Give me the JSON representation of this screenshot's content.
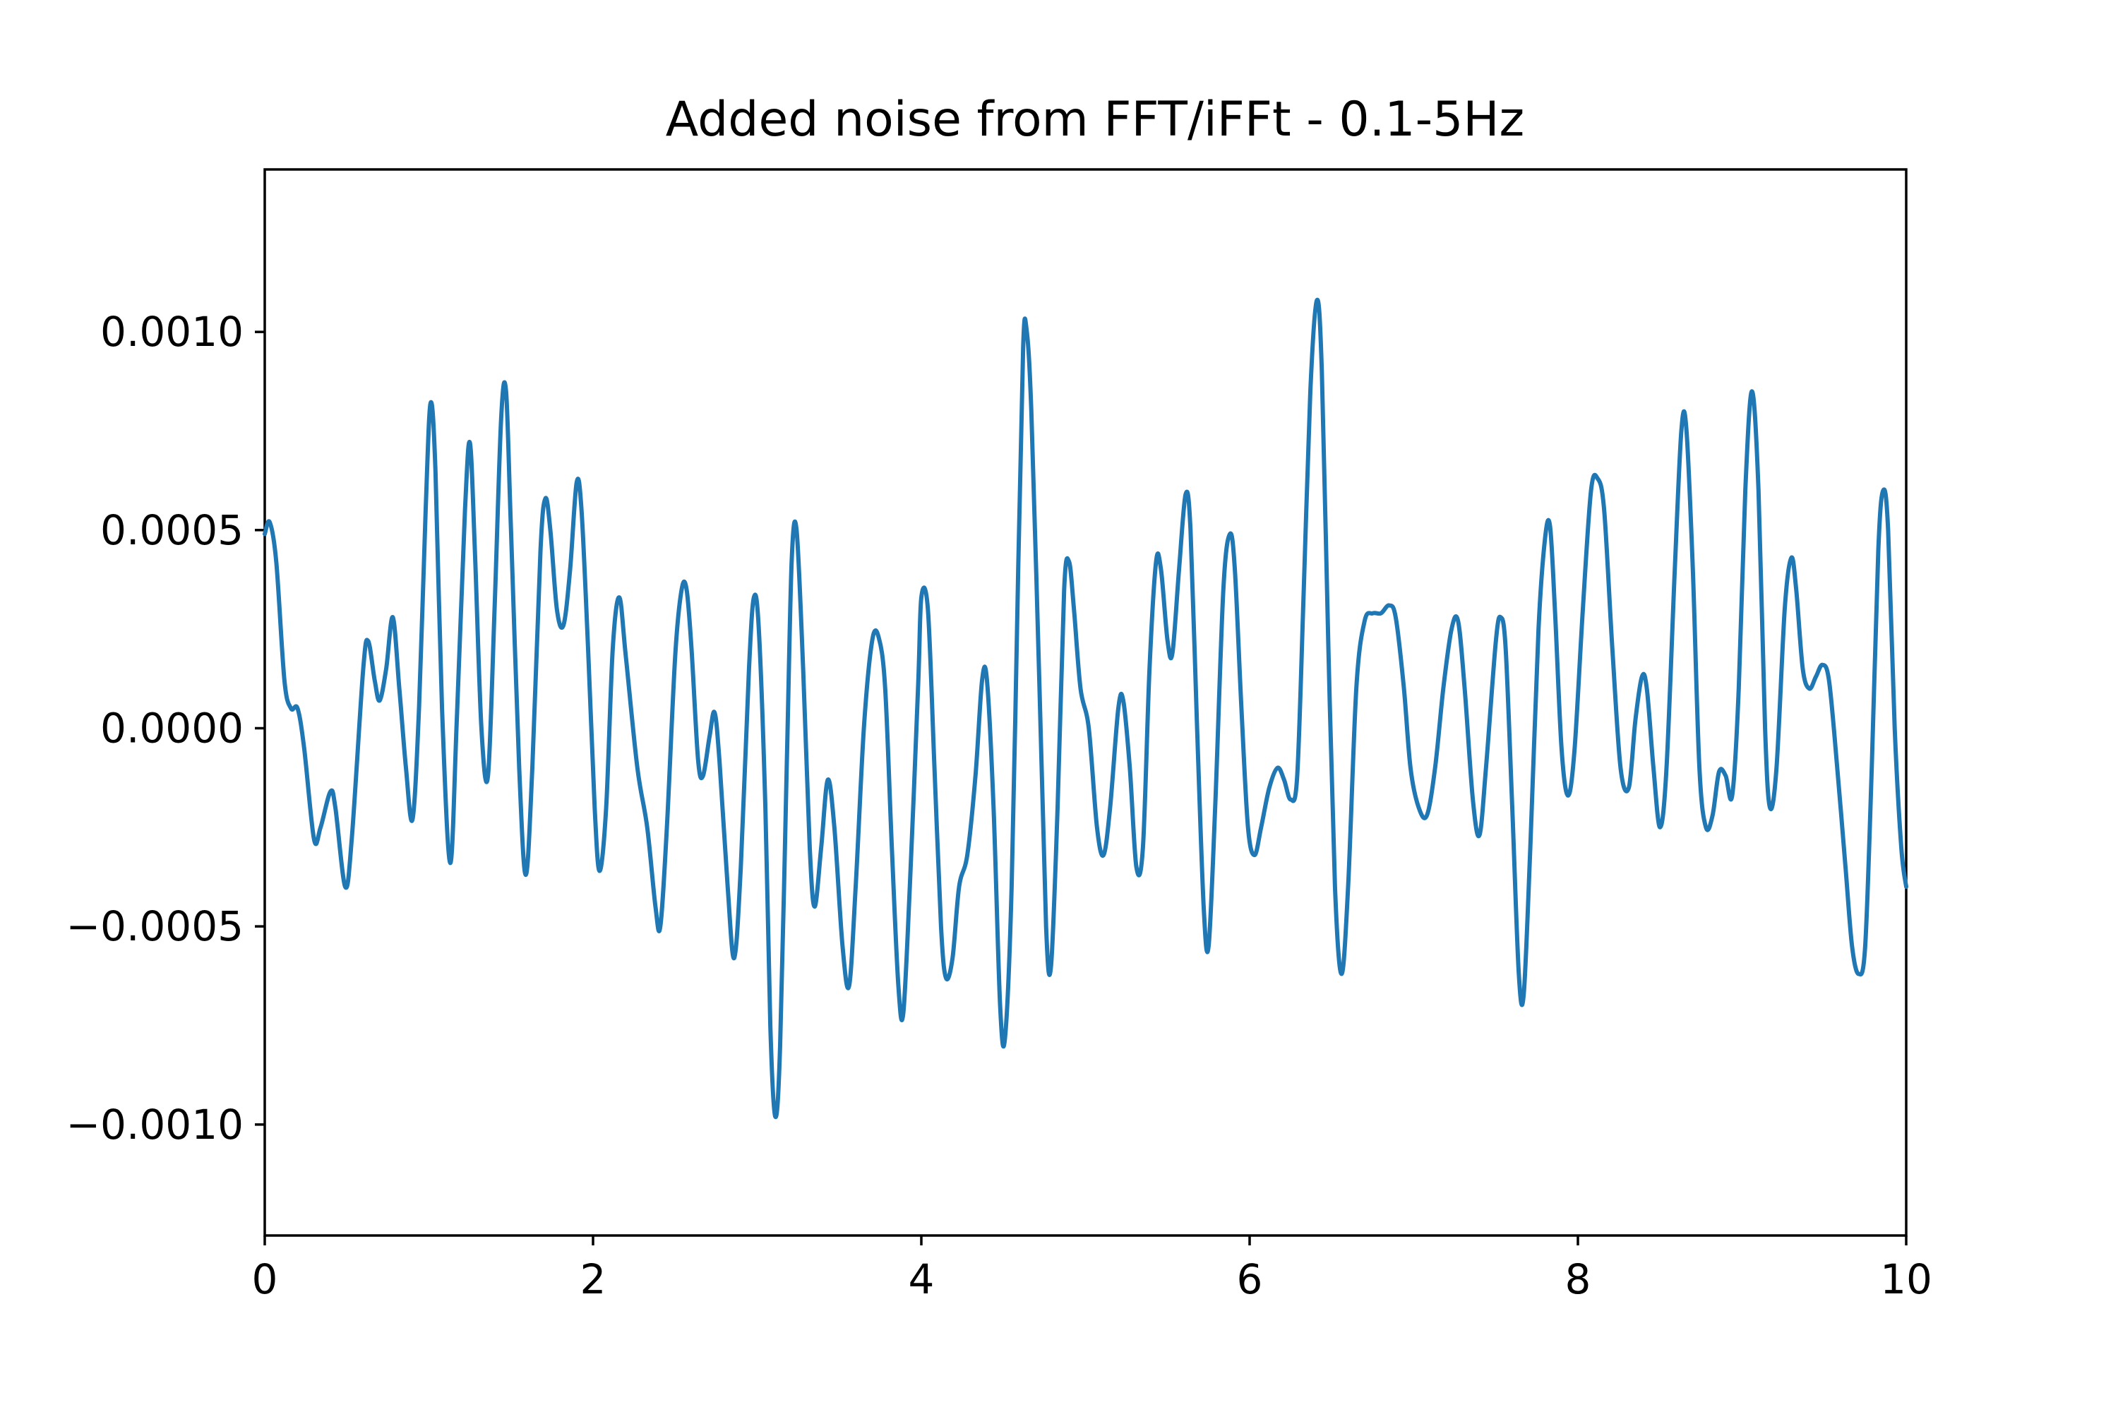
{
  "chart_data": {
    "type": "line",
    "title": "Added noise from FFT/iFFt - 0.1-5Hz",
    "xlabel": "",
    "ylabel": "",
    "xlim": [
      0,
      10
    ],
    "ylim": [
      -0.00128,
      0.00141
    ],
    "grid": false,
    "x_ticks": [
      0,
      2,
      4,
      6,
      8,
      10
    ],
    "x_tick_labels": [
      "0",
      "2",
      "4",
      "6",
      "8",
      "10"
    ],
    "y_ticks": [
      -0.001,
      -0.0005,
      0.0,
      0.0005,
      0.001
    ],
    "y_tick_labels": [
      "−0.0010",
      "−0.0005",
      "0.0000",
      "0.0005",
      "0.0010"
    ],
    "series": [
      {
        "color": "#1f77b4",
        "points": [
          [
            0.0,
            0.00049
          ],
          [
            0.03,
            0.00052
          ],
          [
            0.07,
            0.00042
          ],
          [
            0.12,
            0.00012
          ],
          [
            0.16,
            5e-05
          ],
          [
            0.2,
            5e-05
          ],
          [
            0.24,
            -5e-05
          ],
          [
            0.3,
            -0.00028
          ],
          [
            0.34,
            -0.00025
          ],
          [
            0.4,
            -0.00016
          ],
          [
            0.43,
            -0.0002
          ],
          [
            0.49,
            -0.0004
          ],
          [
            0.53,
            -0.00028
          ],
          [
            0.6,
            0.00015
          ],
          [
            0.63,
            0.00022
          ],
          [
            0.67,
            0.00012
          ],
          [
            0.7,
            7e-05
          ],
          [
            0.74,
            0.00015
          ],
          [
            0.78,
            0.00028
          ],
          [
            0.82,
            0.0001
          ],
          [
            0.86,
            -0.0001
          ],
          [
            0.9,
            -0.00023
          ],
          [
            0.94,
            5e-05
          ],
          [
            0.98,
            0.00055
          ],
          [
            1.01,
            0.00082
          ],
          [
            1.04,
            0.00065
          ],
          [
            1.08,
            5e-05
          ],
          [
            1.13,
            -0.00034
          ],
          [
            1.17,
            2e-05
          ],
          [
            1.22,
            0.00055
          ],
          [
            1.25,
            0.00072
          ],
          [
            1.28,
            0.00045
          ],
          [
            1.32,
            0.0
          ],
          [
            1.36,
            -0.00012
          ],
          [
            1.4,
            0.0003
          ],
          [
            1.44,
            0.00078
          ],
          [
            1.47,
            0.00085
          ],
          [
            1.5,
            0.0005
          ],
          [
            1.55,
            -0.0001
          ],
          [
            1.59,
            -0.00037
          ],
          [
            1.63,
            -0.0001
          ],
          [
            1.68,
            0.00045
          ],
          [
            1.71,
            0.00058
          ],
          [
            1.74,
            0.0005
          ],
          [
            1.78,
            0.0003
          ],
          [
            1.82,
            0.00026
          ],
          [
            1.86,
            0.0004
          ],
          [
            1.9,
            0.00062
          ],
          [
            1.93,
            0.00055
          ],
          [
            1.97,
            0.0002
          ],
          [
            2.01,
            -0.0002
          ],
          [
            2.04,
            -0.00036
          ],
          [
            2.08,
            -0.0002
          ],
          [
            2.12,
            0.0002
          ],
          [
            2.16,
            0.00033
          ],
          [
            2.2,
            0.00018
          ],
          [
            2.27,
            -0.0001
          ],
          [
            2.33,
            -0.00025
          ],
          [
            2.38,
            -0.00045
          ],
          [
            2.41,
            -0.0005
          ],
          [
            2.45,
            -0.00025
          ],
          [
            2.5,
            0.00018
          ],
          [
            2.54,
            0.00035
          ],
          [
            2.57,
            0.00035
          ],
          [
            2.6,
            0.0002
          ],
          [
            2.64,
            -8e-05
          ],
          [
            2.67,
            -0.00012
          ],
          [
            2.71,
            -2e-05
          ],
          [
            2.74,
            4e-05
          ],
          [
            2.77,
            -8e-05
          ],
          [
            2.82,
            -0.0004
          ],
          [
            2.86,
            -0.00058
          ],
          [
            2.9,
            -0.00035
          ],
          [
            2.95,
            0.00015
          ],
          [
            2.98,
            0.00033
          ],
          [
            3.01,
            0.00025
          ],
          [
            3.05,
            -0.0002
          ],
          [
            3.08,
            -0.00075
          ],
          [
            3.11,
            -0.00098
          ],
          [
            3.14,
            -0.0008
          ],
          [
            3.18,
            -0.0001
          ],
          [
            3.21,
            0.00042
          ],
          [
            3.24,
            0.0005
          ],
          [
            3.28,
            0.00015
          ],
          [
            3.32,
            -0.0003
          ],
          [
            3.35,
            -0.00045
          ],
          [
            3.39,
            -0.0003
          ],
          [
            3.43,
            -0.00013
          ],
          [
            3.47,
            -0.00025
          ],
          [
            3.52,
            -0.00055
          ],
          [
            3.56,
            -0.00065
          ],
          [
            3.6,
            -0.0004
          ],
          [
            3.65,
            0.0
          ],
          [
            3.7,
            0.00022
          ],
          [
            3.74,
            0.00023
          ],
          [
            3.78,
            0.0001
          ],
          [
            3.82,
            -0.0003
          ],
          [
            3.86,
            -0.00065
          ],
          [
            3.89,
            -0.00072
          ],
          [
            3.93,
            -0.0004
          ],
          [
            3.98,
            0.0001
          ],
          [
            4.0,
            0.00033
          ],
          [
            4.04,
            0.0003
          ],
          [
            4.08,
            -0.0001
          ],
          [
            4.12,
            -0.0005
          ],
          [
            4.15,
            -0.00063
          ],
          [
            4.19,
            -0.00058
          ],
          [
            4.23,
            -0.0004
          ],
          [
            4.28,
            -0.00032
          ],
          [
            4.33,
            -0.00012
          ],
          [
            4.37,
            0.00012
          ],
          [
            4.4,
            0.00012
          ],
          [
            4.44,
            -0.0002
          ],
          [
            4.48,
            -0.0007
          ],
          [
            4.51,
            -0.00078
          ],
          [
            4.55,
            -0.0004
          ],
          [
            4.59,
            0.0004
          ],
          [
            4.62,
            0.00096
          ],
          [
            4.64,
            0.00101
          ],
          [
            4.67,
            0.0008
          ],
          [
            4.72,
            0.0001
          ],
          [
            4.76,
            -0.0005
          ],
          [
            4.79,
            -0.0006
          ],
          [
            4.83,
            -0.0002
          ],
          [
            4.87,
            0.00035
          ],
          [
            4.9,
            0.00042
          ],
          [
            4.93,
            0.0003
          ],
          [
            4.97,
            0.0001
          ],
          [
            5.02,
            0.0
          ],
          [
            5.07,
            -0.00025
          ],
          [
            5.11,
            -0.00032
          ],
          [
            5.15,
            -0.0002
          ],
          [
            5.2,
            5e-05
          ],
          [
            5.23,
            7e-05
          ],
          [
            5.27,
            -0.0001
          ],
          [
            5.31,
            -0.00035
          ],
          [
            5.35,
            -0.0003
          ],
          [
            5.39,
            0.00015
          ],
          [
            5.43,
            0.00042
          ],
          [
            5.46,
            0.0004
          ],
          [
            5.5,
            0.00022
          ],
          [
            5.53,
            0.00019
          ],
          [
            5.57,
            0.0004
          ],
          [
            5.61,
            0.00059
          ],
          [
            5.64,
            0.0005
          ],
          [
            5.68,
            0.0
          ],
          [
            5.72,
            -0.00045
          ],
          [
            5.75,
            -0.00055
          ],
          [
            5.79,
            -0.0002
          ],
          [
            5.84,
            0.00035
          ],
          [
            5.88,
            0.00049
          ],
          [
            5.91,
            0.0004
          ],
          [
            5.95,
            5e-05
          ],
          [
            5.99,
            -0.00025
          ],
          [
            6.03,
            -0.00032
          ],
          [
            6.07,
            -0.00025
          ],
          [
            6.12,
            -0.00015
          ],
          [
            6.17,
            -0.0001
          ],
          [
            6.21,
            -0.00013
          ],
          [
            6.25,
            -0.00018
          ],
          [
            6.29,
            -0.00012
          ],
          [
            6.33,
            0.00035
          ],
          [
            6.37,
            0.00085
          ],
          [
            6.41,
            0.00108
          ],
          [
            6.44,
            0.0009
          ],
          [
            6.48,
            0.0002
          ],
          [
            6.52,
            -0.0004
          ],
          [
            6.56,
            -0.00062
          ],
          [
            6.6,
            -0.0004
          ],
          [
            6.65,
            0.0001
          ],
          [
            6.7,
            0.00027
          ],
          [
            6.75,
            0.00029
          ],
          [
            6.8,
            0.00029
          ],
          [
            6.85,
            0.00031
          ],
          [
            6.89,
            0.00028
          ],
          [
            6.94,
            0.0001
          ],
          [
            6.98,
            -0.0001
          ],
          [
            7.03,
            -0.0002
          ],
          [
            7.08,
            -0.00022
          ],
          [
            7.13,
            -0.0001
          ],
          [
            7.18,
            0.0001
          ],
          [
            7.23,
            0.00025
          ],
          [
            7.27,
            0.00027
          ],
          [
            7.31,
            0.0001
          ],
          [
            7.36,
            -0.00018
          ],
          [
            7.4,
            -0.00027
          ],
          [
            7.44,
            -0.0001
          ],
          [
            7.5,
            0.00022
          ],
          [
            7.53,
            0.00028
          ],
          [
            7.56,
            0.0002
          ],
          [
            7.6,
            -0.0002
          ],
          [
            7.64,
            -0.00062
          ],
          [
            7.67,
            -0.00067
          ],
          [
            7.71,
            -0.0003
          ],
          [
            7.76,
            0.00025
          ],
          [
            7.8,
            0.00048
          ],
          [
            7.83,
            0.00051
          ],
          [
            7.86,
            0.0003
          ],
          [
            7.9,
            -5e-05
          ],
          [
            7.94,
            -0.00017
          ],
          [
            7.98,
            -5e-05
          ],
          [
            8.03,
            0.0003
          ],
          [
            8.08,
            0.0006
          ],
          [
            8.12,
            0.00063
          ],
          [
            8.16,
            0.00055
          ],
          [
            8.21,
            0.0002
          ],
          [
            8.26,
            -0.0001
          ],
          [
            8.31,
            -0.00015
          ],
          [
            8.35,
            2e-05
          ],
          [
            8.39,
            0.00013
          ],
          [
            8.42,
            0.0001
          ],
          [
            8.46,
            -0.0001
          ],
          [
            8.5,
            -0.00025
          ],
          [
            8.54,
            -0.0001
          ],
          [
            8.59,
            0.0004
          ],
          [
            8.63,
            0.00075
          ],
          [
            8.66,
            0.00076
          ],
          [
            8.7,
            0.0004
          ],
          [
            8.74,
            -0.0001
          ],
          [
            8.78,
            -0.00025
          ],
          [
            8.82,
            -0.00022
          ],
          [
            8.86,
            -0.00011
          ],
          [
            8.9,
            -0.00012
          ],
          [
            8.94,
            -0.00017
          ],
          [
            8.98,
            0.0001
          ],
          [
            9.02,
            0.0006
          ],
          [
            9.06,
            0.00085
          ],
          [
            9.1,
            0.0006
          ],
          [
            9.14,
            0.0
          ],
          [
            9.17,
            -0.0002
          ],
          [
            9.21,
            -0.0001
          ],
          [
            9.26,
            0.0003
          ],
          [
            9.3,
            0.00043
          ],
          [
            9.33,
            0.00035
          ],
          [
            9.37,
            0.00015
          ],
          [
            9.41,
            0.0001
          ],
          [
            9.45,
            0.00013
          ],
          [
            9.49,
            0.00016
          ],
          [
            9.53,
            0.00012
          ],
          [
            9.58,
            -0.0001
          ],
          [
            9.63,
            -0.00035
          ],
          [
            9.67,
            -0.00055
          ],
          [
            9.71,
            -0.00062
          ],
          [
            9.75,
            -0.00055
          ],
          [
            9.79,
            -0.0001
          ],
          [
            9.83,
            0.00045
          ],
          [
            9.86,
            0.0006
          ],
          [
            9.89,
            0.0005
          ],
          [
            9.93,
            0.0
          ],
          [
            9.97,
            -0.0003
          ],
          [
            10.0,
            -0.0004
          ]
        ]
      }
    ]
  }
}
